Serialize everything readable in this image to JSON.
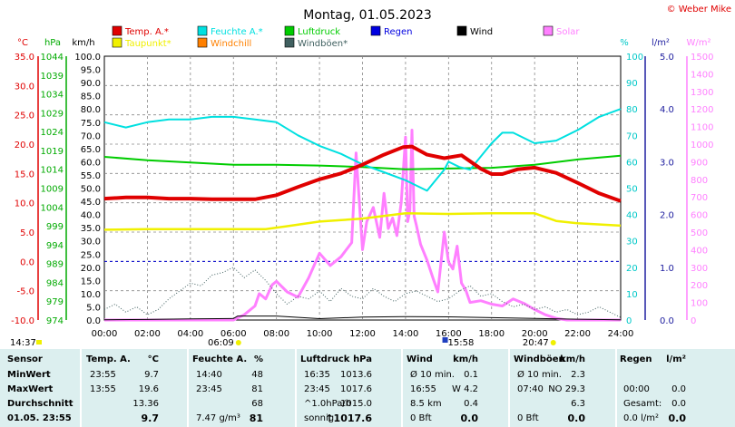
{
  "title": "Montag, 01.05.2023",
  "copyright": "© Weber Mike",
  "chart_data": {
    "type": "line",
    "x_ticks": [
      "00:00",
      "02:00",
      "04:00",
      "06:00",
      "08:00",
      "10:00",
      "12:00",
      "14:00",
      "16:00",
      "18:00",
      "20:00",
      "22:00",
      "24:00"
    ],
    "axes": {
      "temp_c": {
        "unit": "°C",
        "range": [
          -10,
          35
        ],
        "ticks": [
          "35.0",
          "30.0",
          "25.0",
          "20.0",
          "15.0",
          "10.0",
          "5.0",
          "0.0",
          "-5.0",
          "-10.0"
        ],
        "color": "#e00000"
      },
      "pressure_hpa": {
        "unit": "hPa",
        "range": [
          974,
          1044
        ],
        "ticks": [
          "1044",
          "1039",
          "1034",
          "1029",
          "1024",
          "1019",
          "1014",
          "1009",
          "1004",
          "999",
          "994",
          "989",
          "984",
          "979",
          "974"
        ],
        "color": "#00aa00"
      },
      "wind_kmh": {
        "unit": "km/h",
        "range": [
          0,
          100
        ],
        "ticks": [
          "100.0",
          "95.0",
          "90.0",
          "85.0",
          "80.0",
          "75.0",
          "70.0",
          "65.0",
          "60.0",
          "55.0",
          "50.0",
          "45.0",
          "40.0",
          "35.0",
          "30.0",
          "25.0",
          "20.0",
          "15.0",
          "10.0",
          "5.0",
          "0.0"
        ],
        "color": "#000000"
      },
      "humidity_pct": {
        "unit": "%",
        "range": [
          0,
          100
        ],
        "ticks": [
          "100",
          "90",
          "80",
          "70",
          "60",
          "50",
          "40",
          "30",
          "20",
          "10",
          "0"
        ],
        "color": "#00c8c8"
      },
      "rain_lm2": {
        "unit": "l/m²",
        "range": [
          0,
          5
        ],
        "ticks": [
          "5.0",
          "4.0",
          "3.0",
          "2.0",
          "1.0",
          "0.0"
        ],
        "color": "#2020a0"
      },
      "solar_wm2": {
        "unit": "W/m²",
        "range": [
          0,
          1500
        ],
        "ticks": [
          "1500",
          "1400",
          "1300",
          "1200",
          "1100",
          "1000",
          "900",
          "800",
          "700",
          "600",
          "500",
          "400",
          "300",
          "200",
          "100",
          "0"
        ],
        "color": "#ff80ff"
      }
    },
    "legend": [
      {
        "name": "Temp. A.*",
        "color": "#e00000"
      },
      {
        "name": "Feuchte A.*",
        "color": "#00e0e0"
      },
      {
        "name": "Luftdruck",
        "color": "#00cc00"
      },
      {
        "name": "Regen",
        "color": "#0000e0"
      },
      {
        "name": "Wind",
        "color": "#000000"
      },
      {
        "name": "Solar",
        "color": "#ff80ff"
      },
      {
        "name": "Taupunkt*",
        "color": "#f0f000"
      },
      {
        "name": "Windchill",
        "color": "#ff8000"
      },
      {
        "name": "Windböen*",
        "color": "#406060"
      }
    ],
    "series": [
      {
        "name": "Temp. A.*",
        "axis": "temp_c",
        "x": [
          0,
          1,
          2,
          3,
          4,
          5,
          6,
          7,
          8,
          9,
          10,
          11,
          12,
          13,
          13.9,
          14.3,
          15,
          15.8,
          16.6,
          17.5,
          18,
          18.5,
          19.2,
          20,
          21,
          22,
          23,
          24
        ],
        "y": [
          10.7,
          10.9,
          10.9,
          10.7,
          10.7,
          10.6,
          10.6,
          10.6,
          11.3,
          12.7,
          14.0,
          15.0,
          16.5,
          18.2,
          19.5,
          19.6,
          18.2,
          17.6,
          18.1,
          15.8,
          14.9,
          14.9,
          15.7,
          16.0,
          15.1,
          13.4,
          11.6,
          10.3
        ]
      },
      {
        "name": "Taupunkt*",
        "axis": "temp_c",
        "x": [
          0,
          2,
          4,
          6,
          7.5,
          8.5,
          10,
          12,
          14,
          16,
          18,
          20,
          21,
          22,
          24
        ],
        "y": [
          5.4,
          5.5,
          5.5,
          5.5,
          5.5,
          6.0,
          6.8,
          7.3,
          8.2,
          8.1,
          8.2,
          8.2,
          6.9,
          6.5,
          6.1
        ]
      },
      {
        "name": "Luftdruck",
        "axis": "pressure_hpa",
        "x": [
          0,
          2,
          4,
          6,
          8,
          10,
          12,
          14,
          16,
          18,
          20,
          22,
          24
        ],
        "y": [
          1017.3,
          1016.4,
          1015.8,
          1015.2,
          1015.2,
          1015.0,
          1014.6,
          1014.0,
          1014.2,
          1014.4,
          1015.2,
          1016.6,
          1017.6
        ]
      },
      {
        "name": "Feuchte A.*",
        "axis": "humidity_pct",
        "x": [
          0,
          1,
          2,
          3,
          4,
          5,
          6,
          7,
          8,
          9,
          10,
          11,
          12,
          13,
          14,
          14.5,
          15,
          15.8,
          16,
          16.5,
          17,
          18,
          18.5,
          19,
          20,
          21,
          22,
          23,
          24
        ],
        "y": [
          75,
          73,
          75,
          76,
          76,
          77,
          77,
          76,
          75,
          70,
          66,
          63,
          59,
          56,
          53,
          51,
          49,
          57,
          60,
          58,
          57,
          67,
          71,
          71,
          67,
          68,
          72,
          77,
          80
        ]
      },
      {
        "name": "Wind",
        "axis": "wind_kmh",
        "x": [
          0,
          2,
          4,
          6,
          6.2,
          8,
          10,
          12,
          14,
          16,
          18,
          20,
          22,
          24
        ],
        "y": [
          0.1,
          0.2,
          0.4,
          0.6,
          1.5,
          1.5,
          0.5,
          1.1,
          1.3,
          1.2,
          0.9,
          0.6,
          0.3,
          0.1
        ]
      },
      {
        "name": "Windböen*",
        "axis": "wind_kmh",
        "x": [
          0,
          0.5,
          1,
          1.5,
          2,
          2.5,
          3,
          3.5,
          4,
          4.5,
          5,
          5.5,
          6,
          6.5,
          7,
          7.5,
          8,
          8.5,
          9,
          9.5,
          10,
          10.5,
          11,
          11.5,
          12,
          12.5,
          13,
          13.5,
          14,
          14.5,
          15,
          15.5,
          16,
          16.5,
          17,
          17.5,
          18,
          18.5,
          19,
          19.5,
          20,
          20.5,
          21,
          21.5,
          22,
          22.5,
          23,
          23.5,
          24
        ],
        "y": [
          4,
          6,
          3,
          5,
          2,
          4,
          8,
          11,
          14,
          13,
          17,
          18,
          20,
          16,
          19,
          15,
          10,
          6,
          9,
          8,
          11,
          7,
          12,
          9,
          8,
          12,
          9,
          7,
          10,
          11,
          9,
          7,
          8,
          11,
          13,
          9,
          10,
          7,
          5,
          6,
          4,
          5,
          3,
          4,
          2,
          3,
          5,
          3,
          1
        ]
      },
      {
        "name": "Solar",
        "axis": "solar_wm2",
        "x": [
          0,
          6,
          6.5,
          7,
          7.2,
          7.5,
          7.8,
          8,
          8.5,
          9,
          9.5,
          10,
          10.5,
          11,
          11.5,
          11.7,
          12,
          12.2,
          12.5,
          12.8,
          13,
          13.2,
          13.4,
          13.6,
          13.8,
          14,
          14.1,
          14.2,
          14.3,
          14.4,
          14.5,
          14.7,
          15,
          15.3,
          15.5,
          15.8,
          16,
          16.2,
          16.4,
          16.6,
          16.8,
          17,
          17.5,
          18,
          18.5,
          19,
          19.5,
          20,
          20.5,
          21,
          21.5,
          22,
          24
        ],
        "y": [
          0,
          0,
          30,
          80,
          150,
          120,
          200,
          220,
          160,
          130,
          240,
          380,
          310,
          360,
          440,
          950,
          400,
          560,
          640,
          470,
          720,
          520,
          580,
          480,
          670,
          1040,
          560,
          620,
          1080,
          590,
          540,
          430,
          340,
          230,
          160,
          500,
          330,
          290,
          420,
          210,
          170,
          100,
          110,
          90,
          80,
          120,
          95,
          60,
          30,
          10,
          0,
          0,
          0
        ]
      }
    ]
  },
  "footer": {
    "start": "14:37",
    "sunrise": "06:09",
    "max_marker": "15:58",
    "sunset": "20:47"
  },
  "table": {
    "headers": {
      "sensor": "Sensor",
      "temp": "Temp. A.",
      "temp_unit": "°C",
      "hum": "Feuchte A.",
      "hum_unit": "%",
      "press": "Luftdruck",
      "press_unit": "hPa",
      "wind": "Wind",
      "wind_unit": "km/h",
      "gust": "Windböen",
      "gust_unit": "km/h",
      "rain": "Regen",
      "rain_unit": "l/m²"
    },
    "rows": [
      {
        "label": "MinWert",
        "temp_t": "23:55",
        "temp_v": "9.7",
        "hum_t": "14:40",
        "hum_v": "48",
        "press_t": "16:35",
        "press_v": "1013.6",
        "wind_t": "Ø 10 min.",
        "wind_v": "0.1",
        "gust_t": "Ø 10 min.",
        "gust_v": "2.3",
        "rain_t": "",
        "rain_v": ""
      },
      {
        "label": "MaxWert",
        "temp_t": "13:55",
        "temp_v": "19.6",
        "hum_t": "23:45",
        "hum_v": "81",
        "press_t": "23:45",
        "press_v": "1017.6",
        "wind_t": "16:55",
        "wind_v": "W 4.2",
        "gust_t": "07:40",
        "gust_v": "NO 29.3",
        "rain_t": "00:00",
        "rain_v": "0.0"
      },
      {
        "label": "Durchschnitt",
        "temp_t": "",
        "temp_v": "13.36",
        "hum_t": "",
        "hum_v": "68",
        "press_t": "^1.0hPa/h",
        "press_v": "1015.0",
        "wind_t": "8.5 km",
        "wind_v": "0.4",
        "gust_t": "",
        "gust_v": "6.3",
        "rain_t": "Gesamt:",
        "rain_v": "0.0"
      },
      {
        "label": "01.05. 23:55",
        "temp_t": "",
        "temp_v": "9.7",
        "hum_t": "7.47 g/m³",
        "hum_v": "81",
        "press_t": "sonnig",
        "press_v": "↑1017.6",
        "wind_t": "0 Bft",
        "wind_v": "0.0",
        "gust_t": "0 Bft",
        "gust_v": "0.0",
        "rain_t": "0.0 l/m²",
        "rain_v": "0.0"
      }
    ]
  }
}
